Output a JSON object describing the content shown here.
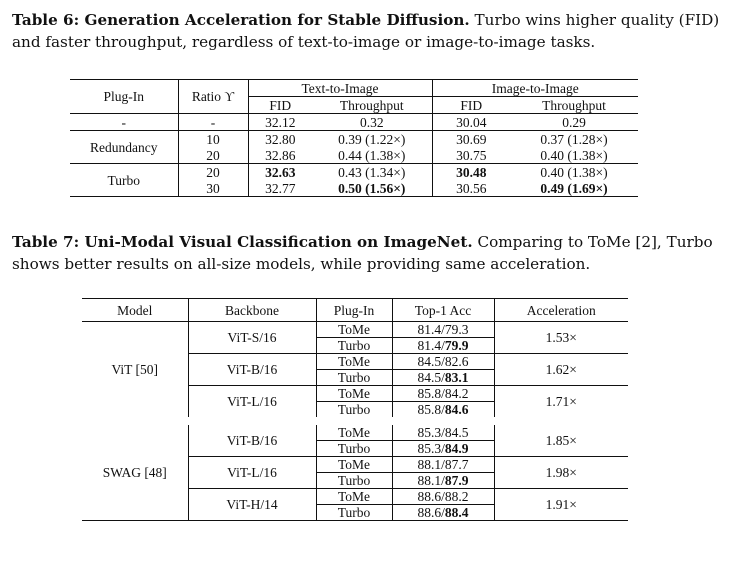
{
  "table6": {
    "caption_title": "Table 6: Generation Acceleration for Stable Diffusion.",
    "caption_body": "Turbo wins higher quality (FID) and faster throughput, regardless of text-to-image or image-to-image tasks.",
    "headers": {
      "plugin": "Plug-In",
      "ratio": "Ratio ϒ",
      "t2i": "Text-to-Image",
      "i2i": "Image-to-Image",
      "fid": "FID",
      "throughput": "Throughput"
    },
    "rows": {
      "base": {
        "plugin": "-",
        "ratio": "-",
        "t2i_fid": "32.12",
        "t2i_tp": "0.32",
        "i2i_fid": "30.04",
        "i2i_tp": "0.29"
      },
      "red_group": "Redundancy",
      "red1": {
        "ratio": "10",
        "t2i_fid": "32.80",
        "t2i_tp": "0.39 (1.22×)",
        "i2i_fid": "30.69",
        "i2i_tp": "0.37 (1.28×)"
      },
      "red2": {
        "ratio": "20",
        "t2i_fid": "32.86",
        "t2i_tp": "0.44 (1.38×)",
        "i2i_fid": "30.75",
        "i2i_tp": "0.40 (1.38×)"
      },
      "turbo_group": "Turbo",
      "tur1": {
        "ratio": "20",
        "t2i_fid": "32.63",
        "t2i_tp": "0.43 (1.34×)",
        "i2i_fid": "30.48",
        "i2i_tp": "0.40 (1.38×)"
      },
      "tur2": {
        "ratio": "30",
        "t2i_fid": "32.77",
        "t2i_tp": "0.50 (1.56×)",
        "i2i_fid": "30.56",
        "i2i_tp": "0.49 (1.69×)"
      }
    }
  },
  "table7": {
    "caption_title": "Table 7: Uni-Modal Visual Classification on ImageNet.",
    "caption_body": "Comparing to ToMe [2], Turbo shows better results on all-size models, while providing same acceleration.",
    "headers": {
      "model": "Model",
      "backbone": "Backbone",
      "plugin": "Plug-In",
      "top1": "Top-1 Acc",
      "accel": "Acceleration"
    },
    "vit": {
      "model": "ViT [50]",
      "groups": [
        {
          "backbone": "ViT-S/16",
          "accel": "1.53×",
          "tome_label": "ToMe",
          "tome_acc": "81.4/79.3",
          "turbo_label": "Turbo",
          "turbo_base": "81.4/",
          "turbo_best": "79.9"
        },
        {
          "backbone": "ViT-B/16",
          "accel": "1.62×",
          "tome_label": "ToMe",
          "tome_acc": "84.5/82.6",
          "turbo_label": "Turbo",
          "turbo_base": "84.5/",
          "turbo_best": "83.1"
        },
        {
          "backbone": "ViT-L/16",
          "accel": "1.71×",
          "tome_label": "ToMe",
          "tome_acc": "85.8/84.2",
          "turbo_label": "Turbo",
          "turbo_base": "85.8/",
          "turbo_best": "84.6"
        }
      ]
    },
    "swag": {
      "model": "SWAG [48]",
      "groups": [
        {
          "backbone": "ViT-B/16",
          "accel": "1.85×",
          "tome_label": "ToMe",
          "tome_acc": "85.3/84.5",
          "turbo_label": "Turbo",
          "turbo_base": "85.3/",
          "turbo_best": "84.9"
        },
        {
          "backbone": "ViT-L/16",
          "accel": "1.98×",
          "tome_label": "ToMe",
          "tome_acc": "88.1/87.7",
          "turbo_label": "Turbo",
          "turbo_base": "88.1/",
          "turbo_best": "87.9"
        },
        {
          "backbone": "ViT-H/14",
          "accel": "1.91×",
          "tome_label": "ToMe",
          "tome_acc": "88.6/88.2",
          "turbo_label": "Turbo",
          "turbo_base": "88.6/",
          "turbo_best": "88.4"
        }
      ]
    }
  }
}
